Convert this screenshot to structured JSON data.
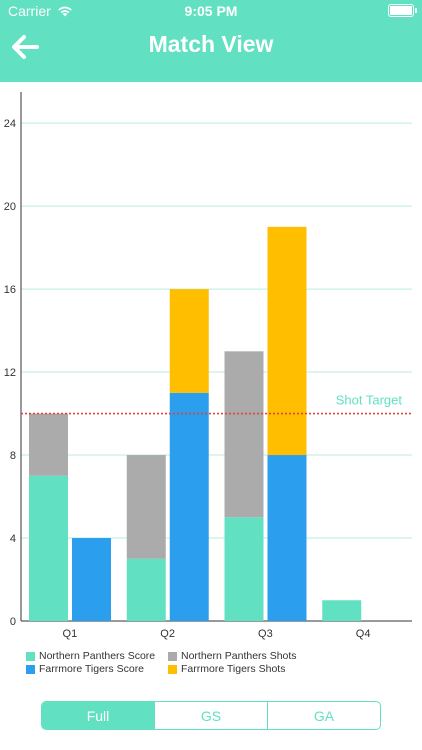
{
  "status_bar": {
    "carrier": "Carrier",
    "time": "9:05 PM"
  },
  "nav": {
    "title": "Match View",
    "back_icon": "back-arrow-icon"
  },
  "colors": {
    "accent": "#61E1C1",
    "panthers_score": "#61E1C1",
    "panthers_shots": "#ABABAB",
    "tigers_score": "#2B9FEE",
    "tigers_shots": "#FFBE00",
    "target_line": "#E0433B",
    "grid": "#B8EEDD"
  },
  "chart_data": {
    "type": "bar",
    "stacked": true,
    "grouped": true,
    "categories": [
      "Q1",
      "Q2",
      "Q3",
      "Q4"
    ],
    "series": [
      {
        "name": "Northern Panthers Score",
        "stack": "panthers",
        "values": [
          7,
          3,
          5,
          1
        ]
      },
      {
        "name": "Northern Panthers Shots",
        "stack": "panthers",
        "values": [
          3,
          5,
          8,
          0
        ]
      },
      {
        "name": "Farrmore Tigers Score",
        "stack": "tigers",
        "values": [
          4,
          11,
          8,
          0
        ]
      },
      {
        "name": "Farrmore Tigers Shots",
        "stack": "tigers",
        "values": [
          0,
          5,
          11,
          0
        ]
      }
    ],
    "ylim": [
      0,
      25.5
    ],
    "yticks": [
      0,
      4,
      8,
      12,
      16,
      20,
      24
    ],
    "reference_line": {
      "label": "Shot Target",
      "value": 10
    },
    "grid": true,
    "legend_position": "bottom-left"
  },
  "legend": [
    {
      "label": "Northern Panthers Score",
      "color": "#61E1C1"
    },
    {
      "label": "Northern Panthers Shots",
      "color": "#ABABAB"
    },
    {
      "label": "Farrmore Tigers Score",
      "color": "#2B9FEE"
    },
    {
      "label": "Farrmore Tigers Shots",
      "color": "#FFBE00"
    }
  ],
  "segments": [
    {
      "label": "Full",
      "selected": true
    },
    {
      "label": "GS",
      "selected": false
    },
    {
      "label": "GA",
      "selected": false
    }
  ]
}
